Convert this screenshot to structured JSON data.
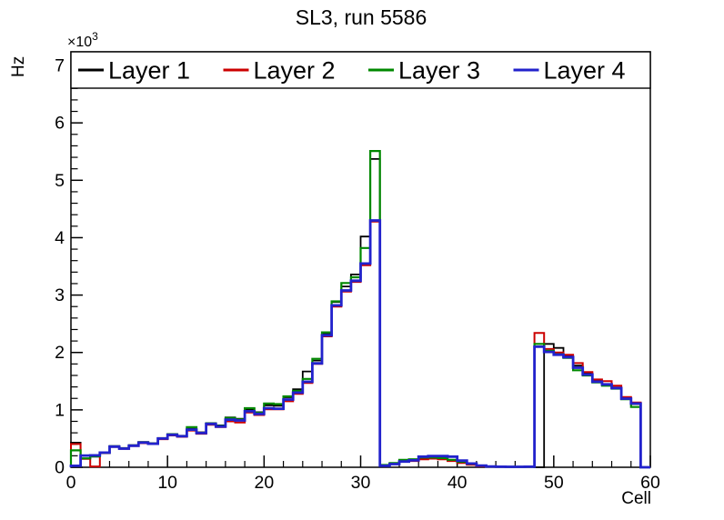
{
  "title": "SL3, run 5586",
  "chart_data": {
    "type": "step-histogram",
    "title": "SL3, run 5586",
    "xlabel": "Cell",
    "ylabel": "Hz",
    "y_scale_label": {
      "base": "×10",
      "exponent": "3"
    },
    "xlim": [
      0,
      60
    ],
    "ylim": [
      0,
      7238
    ],
    "x_major_ticks": [
      0,
      10,
      20,
      30,
      40,
      50,
      60
    ],
    "x_minor_step": 2,
    "y_major_ticks": [
      0,
      1,
      2,
      3,
      4,
      5,
      6,
      7
    ],
    "y_major_tick_unit": 1000,
    "y_minor_step_units": 200,
    "grid": false,
    "legend_position": "top-inside-full-width",
    "frame_color": "#000000",
    "background_color": "#ffffff",
    "series": [
      {
        "name": "Layer 1",
        "color": "#000000",
        "line_width": 1.8,
        "values": [
          430,
          150,
          185,
          260,
          370,
          335,
          385,
          440,
          420,
          510,
          580,
          550,
          670,
          610,
          770,
          730,
          870,
          845,
          1010,
          960,
          1080,
          1070,
          1220,
          1360,
          1670,
          1860,
          2330,
          2880,
          3150,
          3360,
          4020,
          5370,
          30,
          60,
          100,
          120,
          150,
          160,
          145,
          115,
          80,
          50,
          20,
          12,
          8,
          8,
          8,
          8,
          0,
          2150,
          2080,
          1950,
          1770,
          1640,
          1510,
          1440,
          1390,
          1210,
          1100,
          0
        ]
      },
      {
        "name": "Layer 2",
        "color": "#cc0000",
        "line_width": 2.0,
        "values": [
          405,
          148,
          15,
          245,
          355,
          320,
          370,
          420,
          405,
          490,
          555,
          530,
          640,
          585,
          740,
          700,
          800,
          780,
          955,
          910,
          1010,
          1010,
          1150,
          1280,
          1470,
          1800,
          2280,
          2800,
          3060,
          3230,
          3520,
          4280,
          25,
          55,
          95,
          110,
          140,
          150,
          140,
          110,
          75,
          45,
          18,
          10,
          8,
          8,
          8,
          8,
          2340,
          2060,
          2000,
          1960,
          1815,
          1660,
          1530,
          1500,
          1420,
          1225,
          1130,
          0
        ]
      },
      {
        "name": "Layer 3",
        "color": "#008800",
        "line_width": 2.2,
        "values": [
          295,
          155,
          192,
          250,
          365,
          330,
          380,
          435,
          415,
          505,
          575,
          545,
          700,
          600,
          765,
          720,
          860,
          835,
          1030,
          950,
          1110,
          1100,
          1235,
          1330,
          1540,
          1890,
          2350,
          2890,
          3210,
          3310,
          3820,
          5510,
          40,
          75,
          130,
          140,
          170,
          170,
          160,
          130,
          95,
          60,
          25,
          15,
          10,
          8,
          8,
          8,
          2150,
          2030,
          1970,
          1905,
          1690,
          1600,
          1480,
          1420,
          1370,
          1185,
          1050,
          0
        ]
      },
      {
        "name": "Layer 4",
        "color": "#2222cc",
        "line_width": 2.8,
        "values": [
          25,
          205,
          208,
          255,
          360,
          325,
          375,
          430,
          410,
          500,
          565,
          540,
          655,
          595,
          755,
          710,
          830,
          815,
          975,
          930,
          1030,
          1020,
          1180,
          1300,
          1490,
          1810,
          2300,
          2820,
          3080,
          3250,
          3550,
          4300,
          25,
          55,
          100,
          120,
          185,
          195,
          195,
          185,
          115,
          65,
          30,
          15,
          10,
          8,
          8,
          10,
          2100,
          2010,
          1960,
          1920,
          1735,
          1615,
          1490,
          1445,
          1380,
          1195,
          1110,
          0
        ]
      }
    ]
  }
}
